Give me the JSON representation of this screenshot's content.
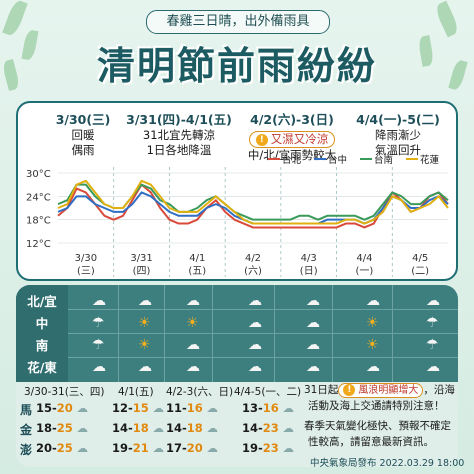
{
  "header": {
    "subtitle": "春雞三日晴，出外備雨具",
    "title": "清明節前雨紛紛"
  },
  "periods": [
    {
      "head": "3/30(三)",
      "lines": [
        "回暖",
        "偶雨"
      ]
    },
    {
      "head": "3/31(四)-4/1(五)",
      "lines": [
        "31北宜先轉涼",
        "1日各地降溫"
      ]
    },
    {
      "head": "4/2(六)-3(日)",
      "warn": "又濕又冷涼",
      "lines": [
        "中/北/宜雨勢較大"
      ]
    },
    {
      "head": "4/4(一)-5(二)",
      "lines": [
        "降雨漸少",
        "氣溫回升"
      ]
    }
  ],
  "chart_data": {
    "type": "line",
    "y_ticks": [
      "30°C",
      "24°C",
      "18°C",
      "12°C"
    ],
    "ylim": [
      12,
      30
    ],
    "x_labels": [
      {
        "date": "3/30",
        "dow": "(三)"
      },
      {
        "date": "3/31",
        "dow": "(四)"
      },
      {
        "date": "4/1",
        "dow": "(五)"
      },
      {
        "date": "4/2",
        "dow": "(六)"
      },
      {
        "date": "4/3",
        "dow": "(日)"
      },
      {
        "date": "4/4",
        "dow": "(一)"
      },
      {
        "date": "4/5",
        "dow": "(二)"
      }
    ],
    "x": [
      0,
      0.5,
      1,
      1.5,
      2,
      2.5,
      3,
      3.5,
      4,
      4.5,
      5,
      5.5,
      6,
      6.5,
      7,
      7.5,
      8,
      8.5,
      9,
      9.5,
      10,
      10.5,
      11,
      11.5,
      12,
      12.5,
      13,
      13.5,
      14,
      14.5,
      15,
      15.5,
      16,
      16.5,
      17,
      17.5,
      18,
      18.5,
      19,
      19.5,
      20,
      20.5,
      21
    ],
    "series": [
      {
        "name": "台北",
        "color": "#d94a3a",
        "values": [
          19,
          21,
          26,
          25,
          22,
          19,
          18,
          19,
          23,
          27,
          25,
          21,
          18,
          17,
          17,
          18,
          21,
          23,
          20,
          18,
          17,
          16,
          16,
          16,
          16,
          16,
          16,
          16,
          16,
          16,
          16,
          17,
          17,
          16,
          17,
          21,
          25,
          23,
          20,
          21,
          24,
          25,
          22
        ]
      },
      {
        "name": "台中",
        "color": "#2f6fc4",
        "values": [
          20,
          21,
          24,
          24,
          22,
          21,
          20,
          20,
          22,
          25,
          24,
          22,
          20,
          19,
          19,
          19,
          21,
          22,
          21,
          19,
          18,
          17,
          17,
          17,
          17,
          17,
          17,
          17,
          17,
          18,
          18,
          18,
          18,
          17,
          18,
          21,
          24,
          23,
          21,
          21,
          23,
          24,
          22
        ]
      },
      {
        "name": "台南",
        "color": "#3a9a5a",
        "values": [
          22,
          23,
          27,
          27,
          24,
          22,
          21,
          21,
          24,
          27,
          26,
          23,
          22,
          20,
          20,
          21,
          23,
          24,
          22,
          20,
          19,
          18,
          18,
          18,
          18,
          18,
          19,
          19,
          18,
          19,
          19,
          19,
          19,
          18,
          19,
          22,
          25,
          24,
          22,
          22,
          24,
          25,
          23
        ]
      },
      {
        "name": "花蓮",
        "color": "#e0b010",
        "values": [
          21,
          22,
          27,
          28,
          25,
          22,
          21,
          21,
          24,
          28,
          27,
          24,
          21,
          20,
          20,
          20,
          22,
          24,
          22,
          20,
          18,
          17,
          17,
          17,
          17,
          17,
          17,
          17,
          17,
          17,
          17,
          18,
          18,
          17,
          18,
          20,
          24,
          23,
          20,
          21,
          22,
          24,
          21
        ]
      }
    ]
  },
  "grid": {
    "regions": [
      "北/宜",
      "中",
      "南",
      "花/東"
    ],
    "icons": [
      [
        "☁",
        "☁",
        "☁",
        "☁",
        "☁",
        "☁",
        "☁",
        "☁",
        "☁",
        "☁",
        "☁",
        "☁",
        "☁",
        "☁"
      ],
      [
        "☂",
        "☀",
        "☀",
        "☁",
        "☁",
        "☀"
      ],
      [
        "☂",
        "☀",
        "☁",
        "☁",
        "☁",
        "☀"
      ],
      [
        "☁",
        "☁",
        "☁",
        "☁",
        "☁",
        "☁"
      ]
    ]
  },
  "islands": {
    "heads": [
      "3/30-31(三、四)",
      "4/1(五)",
      "4/2-3(六、日)",
      "4/4-5(一、二)"
    ],
    "rows": [
      {
        "name": "馬",
        "temps": [
          [
            "15",
            "20"
          ],
          [
            "12",
            "15"
          ],
          [
            "11",
            "16"
          ],
          [
            "13",
            "16"
          ]
        ]
      },
      {
        "name": "金",
        "temps": [
          [
            "18",
            "25"
          ],
          [
            "14",
            "18"
          ],
          [
            "14",
            "18"
          ],
          [
            "14",
            "23"
          ]
        ]
      },
      {
        "name": "澎",
        "temps": [
          [
            "20",
            "25"
          ],
          [
            "19",
            "21"
          ],
          [
            "17",
            "20"
          ],
          [
            "19",
            "23"
          ]
        ]
      }
    ]
  },
  "notes": {
    "line1_a": "31日起",
    "line1_warn": "風浪明顯增大",
    "line1_b": "，沿海",
    "line2": "活動及海上交通請特別注意！",
    "line3": "春季天氣變化極快、預報不確定",
    "line4": "性較高，請留意最新資訊。"
  },
  "footer": "中央氣象局發布 2022.03.29 18:00"
}
